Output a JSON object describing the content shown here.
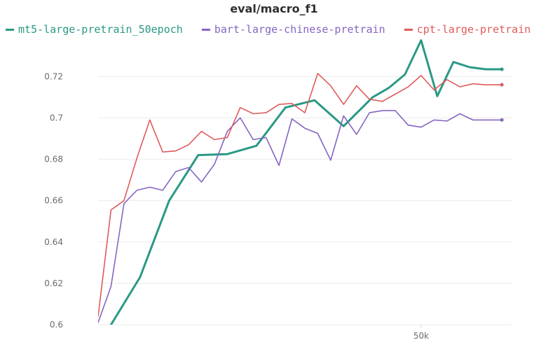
{
  "chart_data": {
    "type": "line",
    "title": "eval/macro_f1",
    "xlabel": "",
    "ylabel": "",
    "ylim": [
      0.6,
      0.735
    ],
    "y_ticks": [
      "0.6",
      "0.62",
      "0.64",
      "0.66",
      "0.68",
      "0.7",
      "0.72"
    ],
    "y_tick_values": [
      0.6,
      0.62,
      0.64,
      0.66,
      0.68,
      0.7,
      0.72
    ],
    "x_ticks": [
      "50k"
    ],
    "x_tick_values": [
      50000
    ],
    "xlim": [
      0,
      64000
    ],
    "grid": "horizontal",
    "legend_position": "top",
    "series": [
      {
        "name": "mt5-large-pretrain_50epoch",
        "color": "#2a9985",
        "stroke": 3,
        "x": [
          2000,
          6500,
          11000,
          15500,
          20000,
          24500,
          29000,
          33500,
          38000,
          42500,
          45000,
          47500,
          50000,
          52500,
          55000,
          57500,
          60000,
          62500
        ],
        "y": [
          0.6,
          0.623,
          0.66,
          0.682,
          0.6825,
          0.6865,
          0.705,
          0.7085,
          0.696,
          0.71,
          0.7145,
          0.721,
          0.7375,
          0.7105,
          0.727,
          0.7245,
          0.7235,
          0.7235
        ]
      },
      {
        "name": "bart-large-chinese-pretrain",
        "color": "#8665c4",
        "stroke": 1.6,
        "x": [
          0,
          2000,
          4000,
          6000,
          8000,
          10000,
          12000,
          14000,
          16000,
          18000,
          20000,
          22000,
          24000,
          26000,
          28000,
          30000,
          32000,
          34000,
          36000,
          38000,
          40000,
          42000,
          44000,
          46000,
          48000,
          50000,
          52000,
          54000,
          56000,
          58000,
          60000,
          62000,
          62500
        ],
        "y": [
          0.601,
          0.6185,
          0.6585,
          0.665,
          0.6665,
          0.665,
          0.674,
          0.676,
          0.669,
          0.6775,
          0.6935,
          0.7,
          0.6895,
          0.6905,
          0.677,
          0.6995,
          0.695,
          0.6925,
          0.6795,
          0.701,
          0.692,
          0.7025,
          0.7035,
          0.7035,
          0.6965,
          0.6955,
          0.699,
          0.6985,
          0.702,
          0.699,
          0.699,
          0.699,
          0.699
        ]
      },
      {
        "name": "cpt-large-pretrain",
        "color": "#e05b5b",
        "stroke": 1.6,
        "x": [
          0,
          2000,
          4000,
          6000,
          8000,
          10000,
          12000,
          14000,
          16000,
          18000,
          20000,
          22000,
          24000,
          26000,
          28000,
          30000,
          32000,
          34000,
          36000,
          38000,
          40000,
          42000,
          44000,
          46000,
          48000,
          50000,
          52000,
          54000,
          56000,
          58000,
          60000,
          62000,
          62500
        ],
        "y": [
          0.604,
          0.6555,
          0.66,
          0.6805,
          0.699,
          0.6835,
          0.684,
          0.687,
          0.6935,
          0.6895,
          0.6905,
          0.705,
          0.702,
          0.7025,
          0.7065,
          0.707,
          0.7025,
          0.7215,
          0.7155,
          0.7065,
          0.7155,
          0.709,
          0.708,
          0.7115,
          0.715,
          0.7205,
          0.7135,
          0.7185,
          0.715,
          0.7165,
          0.716,
          0.716,
          0.716
        ]
      }
    ]
  }
}
